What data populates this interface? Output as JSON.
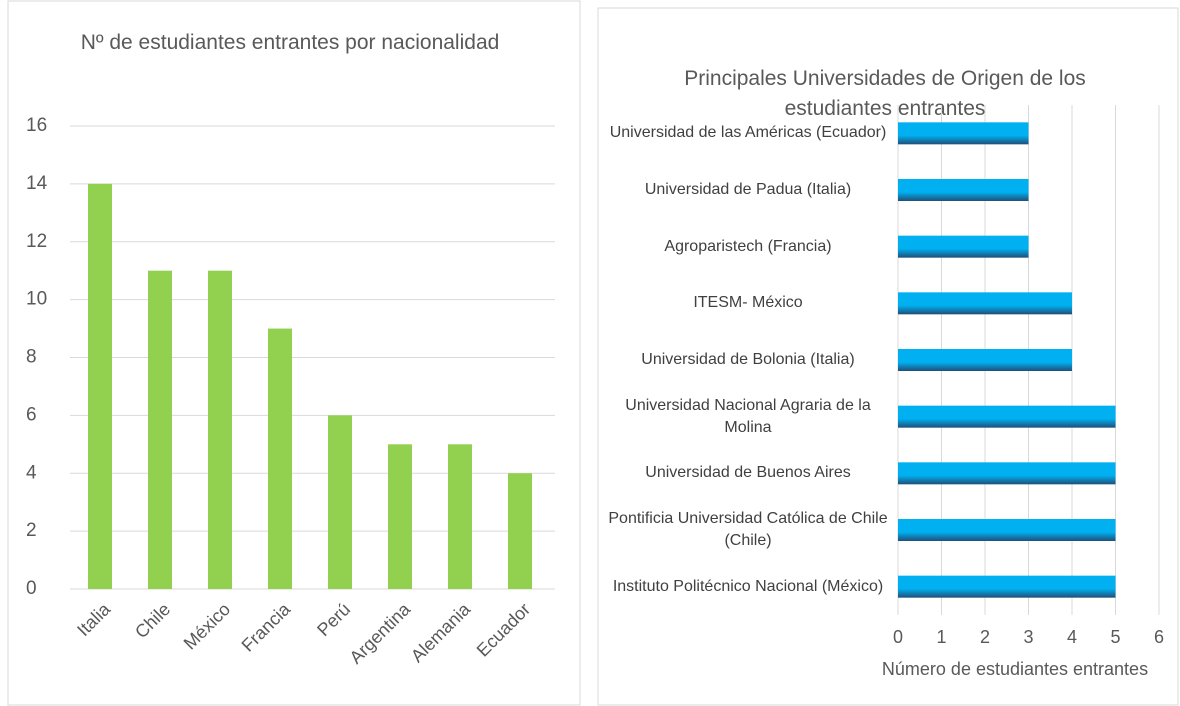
{
  "chart_data": [
    {
      "type": "bar",
      "title": "Nº de estudiantes entrantes por nacionalidad",
      "categories": [
        "Italia",
        "Chile",
        "México",
        "Francia",
        "Perú",
        "Argentina",
        "Alemania",
        "Ecuador"
      ],
      "values": [
        14,
        11,
        11,
        9,
        6,
        5,
        5,
        4
      ],
      "color": "#92d050",
      "ylim": [
        0,
        16
      ],
      "yticks": [
        0,
        2,
        4,
        6,
        8,
        10,
        12,
        14,
        16
      ],
      "grid": true
    },
    {
      "type": "hbar",
      "title": "Principales Universidades de Origen de los estudiantes entrantes",
      "categories": [
        "Universidad de las Américas (Ecuador)",
        "Universidad de Padua (Italia)",
        "Agroparistech (Francia)",
        "ITESM- México",
        "Universidad de Bolonia (Italia)",
        "Universidad Nacional Agraria de la Molina",
        "Universidad de Buenos Aires",
        "Pontificia Universidad Católica de Chile (Chile)",
        "Instituto Politécnico Nacional (México)"
      ],
      "values": [
        3,
        3,
        3,
        4,
        4,
        5,
        5,
        5,
        5
      ],
      "color": "#00b0f0",
      "xlim": [
        0,
        6
      ],
      "xticks": [
        0,
        1,
        2,
        3,
        4,
        5,
        6
      ],
      "xlabel": "Número de estudiantes entrantes",
      "grid": true
    }
  ]
}
